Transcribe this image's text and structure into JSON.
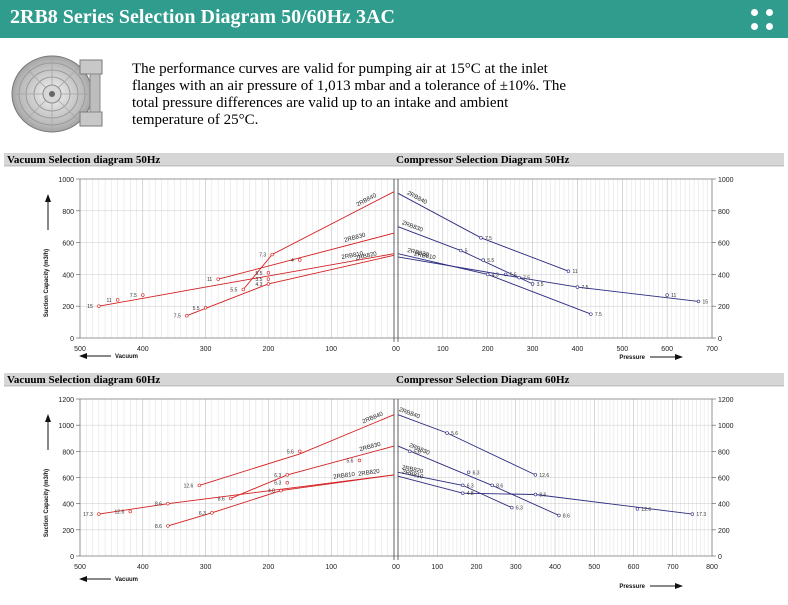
{
  "header": {
    "title": "2RB8 Series Selection Diagram 50/60Hz 3AC"
  },
  "description": "The performance curves are valid for pumping air at 15°C at the inlet flanges with an air pressure of 1,013 mbar and a tolerance of ±10%. The total pressure differences are valid up to an intake and ambient temperature of 25°C.",
  "colors": {
    "header_bg": "#2f9c8e",
    "vacuum_curves": "#d42020",
    "compressor_curves": "#2c2c80",
    "panel_bar": "#d6d6d6"
  },
  "icons": [
    "blower-image",
    "menu-dots-icon"
  ],
  "chart_data": [
    {
      "type": "line",
      "title": "Vacuum Selection diagram 50Hz",
      "xlabel": "Vacuum",
      "ylabel": "Suction Capacity (m3/h)",
      "x_reversed": true,
      "xlim": [
        0,
        500
      ],
      "ylim": [
        0,
        1000
      ],
      "xticks": [
        500,
        400,
        300,
        200,
        100,
        0
      ],
      "yticks": [
        0,
        200,
        400,
        600,
        800,
        1000
      ],
      "grid": true,
      "series": [
        {
          "name": "2RB840",
          "points": [
            [
              240,
              305
            ],
            [
              194,
              525
            ],
            [
              0,
              920
            ]
          ],
          "marks": [
            [
              240,
              305,
              "5.5"
            ],
            [
              194,
              525,
              "7.3"
            ]
          ]
        },
        {
          "name": "2RB830",
          "points": [
            [
              280,
              370
            ],
            [
              0,
              660
            ]
          ],
          "marks": [
            [
              280,
              370,
              "11"
            ],
            [
              150,
              490,
              "4"
            ]
          ]
        },
        {
          "name": "2RB820",
          "points": [
            [
              330,
              140
            ],
            [
              200,
              340
            ],
            [
              0,
              520
            ]
          ],
          "marks": [
            [
              330,
              140,
              "7.5"
            ],
            [
              300,
              190,
              "5.5"
            ],
            [
              200,
              340,
              "4.3"
            ]
          ]
        },
        {
          "name": "2RB810",
          "points": [
            [
              470,
              200
            ],
            [
              300,
              320
            ],
            [
              0,
              530
            ]
          ],
          "marks": [
            [
              470,
              200,
              "15"
            ],
            [
              440,
              240,
              "11"
            ],
            [
              400,
              270,
              "7.5"
            ],
            [
              200,
              410,
              "5.5"
            ],
            [
              200,
              370,
              "3.5"
            ]
          ]
        }
      ]
    },
    {
      "type": "line",
      "title": "Compressor Selection Diagram 50Hz",
      "xlabel": "Pressure",
      "ylabel": "",
      "xlim": [
        0,
        700
      ],
      "ylim": [
        0,
        1000
      ],
      "xticks": [
        0,
        100,
        200,
        300,
        400,
        500,
        600,
        700
      ],
      "yticks": [
        0,
        200,
        400,
        600,
        800,
        1000
      ],
      "grid": true,
      "series": [
        {
          "name": "2RB840",
          "points": [
            [
              0,
              910
            ],
            [
              185,
              630
            ],
            [
              380,
              420
            ]
          ],
          "marks": [
            [
              185,
              630,
              "7.5"
            ],
            [
              380,
              420,
              "11"
            ]
          ]
        },
        {
          "name": "2RB830",
          "points": [
            [
              0,
              700
            ],
            [
              140,
              550
            ],
            [
              300,
              340
            ]
          ],
          "marks": [
            [
              140,
              550,
              "5"
            ],
            [
              190,
              490,
              "5.5"
            ],
            [
              240,
              400,
              "5.5"
            ],
            [
              300,
              340,
              "3.5"
            ]
          ]
        },
        {
          "name": "2RB820",
          "points": [
            [
              0,
              530
            ],
            [
              200,
              400
            ],
            [
              430,
              150
            ]
          ],
          "marks": [
            [
              200,
              400,
              "4.3"
            ],
            [
              430,
              150,
              "7.5"
            ]
          ]
        },
        {
          "name": "2RB810",
          "points": [
            [
              0,
              510
            ],
            [
              270,
              380
            ],
            [
              400,
              320
            ],
            [
              670,
              230
            ]
          ],
          "marks": [
            [
              270,
              380,
              "7.5"
            ],
            [
              400,
              320,
              "7.5"
            ],
            [
              600,
              270,
              "11"
            ],
            [
              670,
              230,
              "15"
            ]
          ]
        }
      ]
    },
    {
      "type": "line",
      "title": "Vacuum Selection diagram 60Hz",
      "xlabel": "Vacuum",
      "ylabel": "Suction Capacity (m3/h)",
      "x_reversed": true,
      "xlim": [
        0,
        500
      ],
      "ylim": [
        0,
        1200
      ],
      "xticks": [
        500,
        400,
        300,
        200,
        100,
        0
      ],
      "yticks": [
        0,
        200,
        400,
        600,
        800,
        1000,
        1200
      ],
      "grid": true,
      "series": [
        {
          "name": "2RB840",
          "points": [
            [
              310,
              540
            ],
            [
              150,
              780
            ],
            [
              0,
              1080
            ]
          ],
          "marks": [
            [
              310,
              540,
              "12.6"
            ],
            [
              150,
              800,
              "5.6"
            ]
          ]
        },
        {
          "name": "2RB830",
          "points": [
            [
              260,
              440
            ],
            [
              170,
              620
            ],
            [
              0,
              840
            ]
          ],
          "marks": [
            [
              260,
              440,
              "8.6"
            ],
            [
              170,
              620,
              "6.3"
            ],
            [
              55,
              730,
              "5.6"
            ]
          ]
        },
        {
          "name": "2RB820",
          "points": [
            [
              360,
              230
            ],
            [
              290,
              330
            ],
            [
              180,
              500
            ],
            [
              0,
              620
            ]
          ],
          "marks": [
            [
              360,
              230,
              "8.6"
            ],
            [
              290,
              330,
              "6.3"
            ],
            [
              180,
              500,
              "4.8"
            ]
          ]
        },
        {
          "name": "2RB810",
          "points": [
            [
              470,
              320
            ],
            [
              360,
              400
            ],
            [
              0,
              620
            ]
          ],
          "marks": [
            [
              470,
              320,
              "17.3"
            ],
            [
              420,
              340,
              "12.6"
            ],
            [
              360,
              400,
              "8.6"
            ],
            [
              170,
              560,
              "6.3"
            ]
          ]
        }
      ]
    },
    {
      "type": "line",
      "title": "Compressor Selection Diagram 60Hz",
      "xlabel": "Pressure",
      "ylabel": "",
      "xlim": [
        0,
        800
      ],
      "ylim": [
        0,
        1200
      ],
      "xticks": [
        0,
        100,
        200,
        300,
        400,
        500,
        600,
        700,
        800
      ],
      "yticks": [
        0,
        200,
        400,
        600,
        800,
        1000,
        1200
      ],
      "grid": true,
      "series": [
        {
          "name": "2RB840",
          "points": [
            [
              0,
              1080
            ],
            [
              125,
              940
            ],
            [
              350,
              620
            ]
          ],
          "marks": [
            [
              125,
              940,
              "5.6"
            ],
            [
              350,
              620,
              "12.6"
            ]
          ]
        },
        {
          "name": "2RB830",
          "points": [
            [
              0,
              840
            ],
            [
              240,
              540
            ],
            [
              410,
              310
            ]
          ],
          "marks": [
            [
              30,
              800,
              "5.6"
            ],
            [
              180,
              640,
              "6.3"
            ],
            [
              240,
              540,
              "8.6"
            ],
            [
              410,
              310,
              "8.6"
            ]
          ]
        },
        {
          "name": "2RB820",
          "points": [
            [
              0,
              640
            ],
            [
              165,
              540
            ],
            [
              290,
              370
            ]
          ],
          "marks": [
            [
              165,
              540,
              "6.3"
            ],
            [
              290,
              370,
              "6.3"
            ]
          ]
        },
        {
          "name": "2RB810",
          "points": [
            [
              0,
              610
            ],
            [
              165,
              480
            ],
            [
              350,
              470
            ],
            [
              750,
              320
            ]
          ],
          "marks": [
            [
              165,
              480,
              "4.8"
            ],
            [
              350,
              470,
              "8.6"
            ],
            [
              610,
              360,
              "12.6"
            ],
            [
              750,
              320,
              "17.3"
            ]
          ]
        }
      ]
    }
  ]
}
